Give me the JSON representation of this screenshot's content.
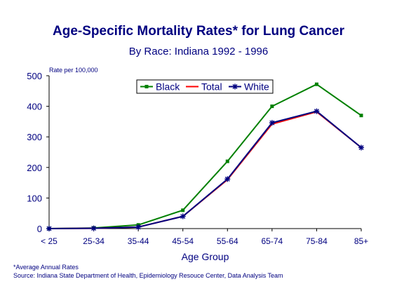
{
  "header": {
    "title": "Age-Specific  Mortality Rates* for Lung Cancer",
    "subtitle": "By Race:  Indiana 1992 - 1996"
  },
  "footer": {
    "note": "*Average Annual Rates",
    "source": "Source:  Indiana State Department of Health, Epidemiology Resouce Center, Data Analysis Team"
  },
  "chart_data": {
    "type": "line",
    "title": "Age-Specific  Mortality Rates* for Lung Cancer",
    "subtitle": "By Race:  Indiana 1992 - 1996",
    "xlabel": "Age Group",
    "ylabel": "Rate per 100,000",
    "categories": [
      "< 25",
      "25-34",
      "35-44",
      "45-54",
      "55-64",
      "65-74",
      "75-84",
      "85+"
    ],
    "ylim": [
      0,
      500
    ],
    "yticks": [
      0,
      100,
      200,
      300,
      400,
      500
    ],
    "grid": false,
    "legend": "top-center",
    "series": [
      {
        "name": "Black",
        "color": "#008000",
        "marker": "square",
        "values": [
          0,
          2,
          12,
          60,
          220,
          400,
          472,
          370
        ]
      },
      {
        "name": "Total",
        "color": "#ff0000",
        "marker": "none",
        "values": [
          0,
          1,
          5,
          40,
          160,
          342,
          382,
          265
        ]
      },
      {
        "name": "White",
        "color": "#000080",
        "marker": "star",
        "values": [
          0,
          1,
          5,
          40,
          162,
          346,
          384,
          265
        ]
      }
    ]
  }
}
